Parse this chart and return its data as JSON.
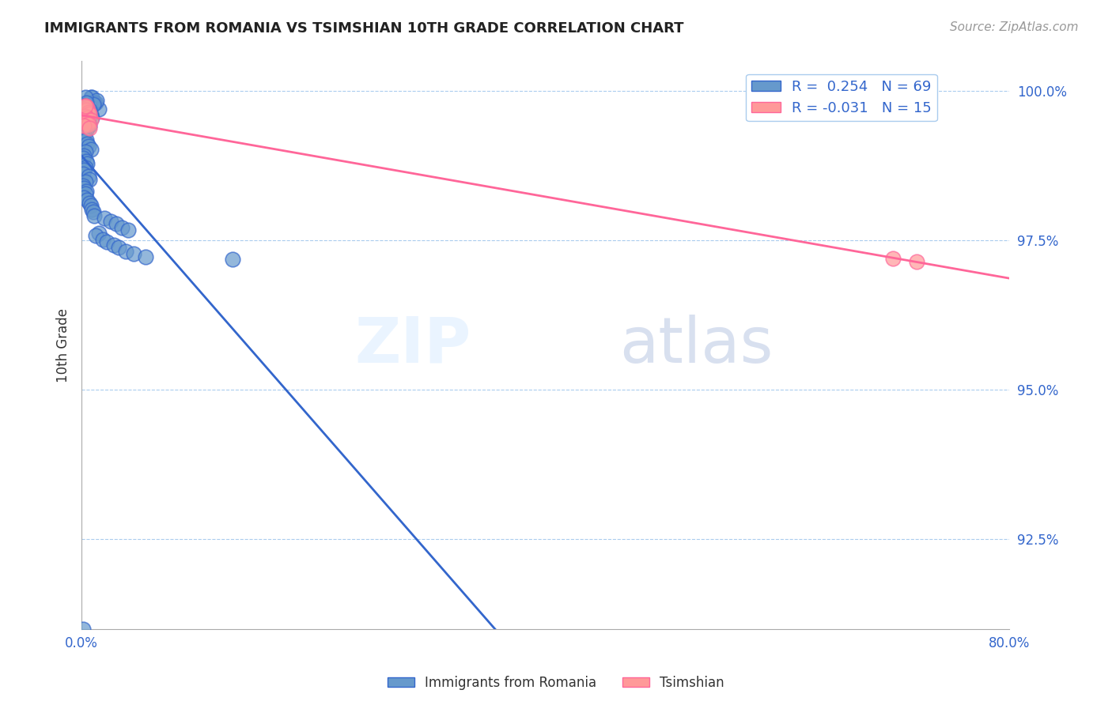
{
  "title": "IMMIGRANTS FROM ROMANIA VS TSIMSHIAN 10TH GRADE CORRELATION CHART",
  "source": "Source: ZipAtlas.com",
  "ylabel": "10th Grade",
  "xlim": [
    0.0,
    0.8
  ],
  "ylim": [
    0.91,
    1.005
  ],
  "yticks": [
    0.925,
    0.95,
    0.975,
    1.0
  ],
  "ytick_labels": [
    "92.5%",
    "95.0%",
    "97.5%",
    "100.0%"
  ],
  "xticks": [
    0.0,
    0.2,
    0.4,
    0.6,
    0.8
  ],
  "xtick_labels": [
    "0.0%",
    "",
    "",
    "",
    "80.0%"
  ],
  "legend_r1": "R =  0.254",
  "legend_n1": "N = 69",
  "legend_r2": "R = -0.031",
  "legend_n2": "N = 15",
  "blue_color": "#6699CC",
  "pink_color": "#FF9999",
  "trend_blue": "#3366CC",
  "trend_pink": "#FF6699",
  "watermark_zip": "ZIP",
  "watermark_atlas": "atlas",
  "romania_x": [
    0.008,
    0.012,
    0.015,
    0.006,
    0.009,
    0.011,
    0.007,
    0.013,
    0.01,
    0.005,
    0.003,
    0.004,
    0.002,
    0.001,
    0.006,
    0.008,
    0.009,
    0.007,
    0.005,
    0.003,
    0.004,
    0.006,
    0.007,
    0.005,
    0.003,
    0.002,
    0.001,
    0.004,
    0.005,
    0.006,
    0.008,
    0.003,
    0.002,
    0.001,
    0.004,
    0.005,
    0.003,
    0.002,
    0.001,
    0.006,
    0.007,
    0.003,
    0.001,
    0.002,
    0.004,
    0.003,
    0.002,
    0.005,
    0.007,
    0.008,
    0.009,
    0.01,
    0.011,
    0.02,
    0.025,
    0.03,
    0.035,
    0.04,
    0.015,
    0.012,
    0.018,
    0.022,
    0.028,
    0.032,
    0.038,
    0.045,
    0.055,
    0.13,
    0.001
  ],
  "romania_y": [
    0.999,
    0.998,
    0.997,
    0.998,
    0.999,
    0.998,
    0.9975,
    0.9985,
    0.9978,
    0.9972,
    0.999,
    0.998,
    0.9975,
    0.997,
    0.9965,
    0.996,
    0.9955,
    0.9968,
    0.9962,
    0.9958,
    0.9952,
    0.9948,
    0.9942,
    0.9938,
    0.9932,
    0.9928,
    0.9922,
    0.9918,
    0.9912,
    0.9908,
    0.9902,
    0.9898,
    0.9892,
    0.9888,
    0.9882,
    0.9878,
    0.9872,
    0.9868,
    0.9862,
    0.9858,
    0.9852,
    0.9848,
    0.9842,
    0.9838,
    0.9832,
    0.9828,
    0.9822,
    0.9818,
    0.9812,
    0.9808,
    0.9802,
    0.9798,
    0.9792,
    0.9788,
    0.9782,
    0.9778,
    0.9772,
    0.9768,
    0.9762,
    0.9758,
    0.9752,
    0.9748,
    0.9742,
    0.9738,
    0.9732,
    0.9728,
    0.9722,
    0.9718,
    0.91
  ],
  "tsimshian_x": [
    0.003,
    0.005,
    0.004,
    0.006,
    0.007,
    0.003,
    0.005,
    0.008,
    0.004,
    0.006,
    0.002,
    0.007,
    0.003,
    0.7,
    0.72
  ],
  "tsimshian_y": [
    0.9975,
    0.9972,
    0.9968,
    0.9965,
    0.9962,
    0.9958,
    0.9955,
    0.9952,
    0.9948,
    0.9945,
    0.9942,
    0.9938,
    0.9975,
    0.972,
    0.9715
  ]
}
